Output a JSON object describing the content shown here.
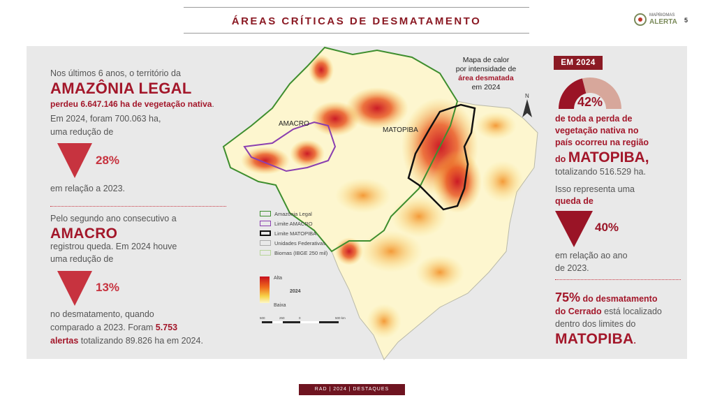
{
  "header": {
    "title": "ÁREAS CRÍTICAS DE DESMATAMENTO",
    "logo_line1": "MAPBIOMAS",
    "logo_line2": "ALERTA",
    "page": "5"
  },
  "left": {
    "intro": "Nos últimos 6 anos, o território da",
    "region1": "AMAZÔNIA LEGAL",
    "lost": "perdeu 6.647.146 ha de vegetação nativa",
    "lost_end": ".",
    "year_line": "Em 2024, foram 700.063 ha,",
    "reduction_line": "uma redução de",
    "pct1": "28%",
    "compare1": "em relação a 2023.",
    "second_intro": "Pelo segundo ano consecutivo a",
    "region2": "AMACRO",
    "second_l1": "registrou queda. Em 2024 houve",
    "second_l2": "uma redução de",
    "pct2": "13%",
    "second_l3": "no desmatamento, quando",
    "second_l4a": "comparado a 2023. Foram ",
    "second_l4b": "5.753",
    "second_l5a": "alertas",
    "second_l5b": " totalizando 89.826 ha em 2024."
  },
  "map": {
    "caption_l1": "Mapa de calor",
    "caption_l2": "por intensidade de",
    "caption_l3": "área desmatada",
    "caption_l4": "em 2024",
    "label_amacro": "AMACRO",
    "label_matopiba": "MATOPIBA",
    "legend": [
      "Amazônia Legal",
      "Limite AMACRO",
      "Limite MATOPIBA",
      "Unidades Federativas",
      "Biomas (IBGE 250 mil)"
    ],
    "legend_colors": [
      "#3e8e2e",
      "#8a3fb0",
      "#111111",
      "#aaaaaa",
      "#b7d59a"
    ],
    "scale_high": "Alta",
    "scale_year": "2024",
    "scale_low": "Baixa",
    "scalebar": [
      "500",
      "250",
      "0",
      "500 km"
    ],
    "north": "N"
  },
  "right": {
    "badge": "EM 2024",
    "gauge_pct": "42%",
    "gauge_value": 0.42,
    "l1": "de toda a perda de",
    "l2": "vegetação nativa no",
    "l3": "país ocorreu na região",
    "l4a": "do ",
    "l4b": "MATOPIBA,",
    "l5": "totalizando 516.529 ha.",
    "l6": "Isso representa uma",
    "l7": "queda de",
    "pct3": "40%",
    "l8": "em relação ao ano",
    "l9": "de 2023.",
    "stat": "75%",
    "stat_l1": " do desmatamento",
    "stat_l2a": "do Cerrado",
    "stat_l2b": " está localizado",
    "stat_l3": "dentro dos limites do",
    "stat_region": "MATOPIBA",
    "stat_end": "."
  },
  "footer": {
    "text": "RAD | 2024 | DESTAQUES"
  }
}
